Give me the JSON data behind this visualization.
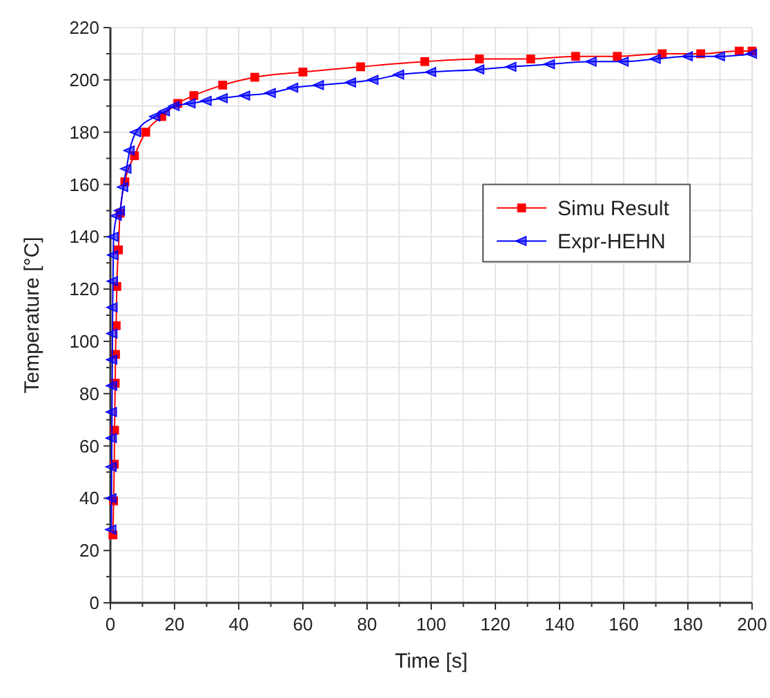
{
  "chart_data": {
    "type": "line",
    "xlabel": "Time [s]",
    "ylabel": "Temperature [°C]",
    "xlim": [
      0,
      200
    ],
    "ylim": [
      0,
      220
    ],
    "xticks": [
      0,
      20,
      40,
      60,
      80,
      100,
      120,
      140,
      160,
      180,
      200
    ],
    "yticks": [
      0,
      20,
      40,
      60,
      80,
      100,
      120,
      140,
      160,
      180,
      200,
      220
    ],
    "grid": true,
    "legend": "right",
    "series": [
      {
        "name": "Simu Result",
        "color": "#ff0000",
        "marker": "square",
        "x": [
          0.8,
          1,
          1.2,
          1.3,
          1.5,
          1.6,
          1.8,
          2,
          2.5,
          3,
          4.5,
          7.5,
          11,
          16,
          21,
          26,
          35,
          45,
          60,
          78,
          98,
          115,
          131,
          145,
          158,
          172,
          184,
          196,
          200
        ],
        "values": [
          26,
          39,
          53,
          66,
          84,
          95,
          106,
          121,
          135,
          149,
          161,
          171,
          180,
          186,
          191,
          194,
          198,
          201,
          203,
          205,
          207,
          208,
          208,
          209,
          209,
          210,
          210,
          211,
          211
        ]
      },
      {
        "name": "Expr-HEHN",
        "color": "#0000ff",
        "marker": "triangle",
        "x": [
          0.3,
          0.35,
          0.4,
          0.45,
          0.5,
          0.55,
          0.6,
          0.65,
          0.7,
          0.8,
          0.9,
          1,
          2,
          3,
          4,
          5,
          6,
          8,
          14,
          17,
          20,
          25,
          30,
          35,
          42,
          50,
          57,
          65,
          75,
          82,
          90,
          100,
          115,
          125,
          137,
          150,
          160,
          170,
          180,
          190,
          200
        ],
        "values": [
          28,
          40,
          52,
          63,
          73,
          83,
          93,
          103,
          113,
          123,
          133,
          140,
          148,
          150,
          159,
          166,
          173,
          180,
          186,
          188,
          190,
          191,
          192,
          193,
          194,
          195,
          197,
          198,
          199,
          200,
          202,
          203,
          204,
          205,
          206,
          207,
          207,
          208,
          209,
          209,
          210
        ]
      }
    ]
  }
}
